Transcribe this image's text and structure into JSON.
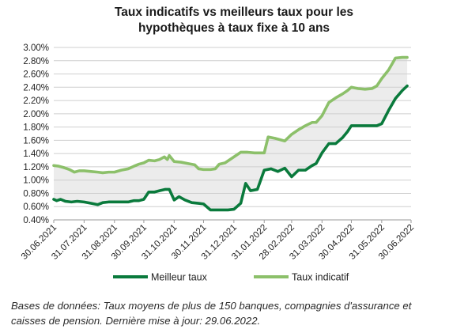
{
  "title_lines": [
    "Taux indicatifs vs meilleurs taux pour les",
    "hypothèques à taux fixe à 10 ans"
  ],
  "source_note_lines": [
    "Bases de données: Taux moyens de plus de 150 banques, compagnies d'assurance et",
    "caisses de pension. Dernière mise à jour: 29.06.2022."
  ],
  "colors": {
    "meilleur_taux": "#0a7a3c",
    "taux_indicatif": "#8cc06a",
    "band_fill": "#ececec",
    "grid": "#cfcfcf"
  },
  "chart_data": {
    "type": "line",
    "title": "Taux indicatifs vs meilleurs taux pour les hypothèques à taux fixe à 10 ans",
    "xlabel": "",
    "ylabel": "",
    "x_tick_labels": [
      "30.06.2021",
      "31.07.2021",
      "31.08.2021",
      "30.09.2021",
      "31.10.2021",
      "30.11.2021",
      "31.12.2021",
      "31.01.2022",
      "28.02.2022",
      "31.03.2022",
      "30.04.2022",
      "31.05.2022",
      "30.06.2022"
    ],
    "y_tick_labels": [
      "0.40%",
      "0.60%",
      "0.80%",
      "1.00%",
      "1.20%",
      "1.40%",
      "1.60%",
      "1.80%",
      "2.00%",
      "2.20%",
      "2.40%",
      "2.60%",
      "2.80%",
      "3.00%"
    ],
    "ylim": [
      0.4,
      3.0
    ],
    "y_unit": "%",
    "grid": "horizontal",
    "legend_position": "bottom",
    "series": [
      {
        "name": "Meilleur taux",
        "key": "meilleur_taux",
        "points": [
          [
            "30.06.2021",
            0.71
          ],
          [
            "03.07.2021",
            0.69
          ],
          [
            "07.07.2021",
            0.71
          ],
          [
            "12.07.2021",
            0.68
          ],
          [
            "18.07.2021",
            0.67
          ],
          [
            "24.07.2021",
            0.68
          ],
          [
            "31.07.2021",
            0.67
          ],
          [
            "07.08.2021",
            0.65
          ],
          [
            "14.08.2021",
            0.63
          ],
          [
            "19.08.2021",
            0.66
          ],
          [
            "25.08.2021",
            0.67
          ],
          [
            "31.08.2021",
            0.67
          ],
          [
            "07.09.2021",
            0.67
          ],
          [
            "14.09.2021",
            0.67
          ],
          [
            "20.09.2021",
            0.69
          ],
          [
            "25.09.2021",
            0.69
          ],
          [
            "30.09.2021",
            0.71
          ],
          [
            "05.10.2021",
            0.82
          ],
          [
            "11.10.2021",
            0.82
          ],
          [
            "16.10.2021",
            0.84
          ],
          [
            "22.10.2021",
            0.86
          ],
          [
            "26.10.2021",
            0.86
          ],
          [
            "31.10.2021",
            0.7
          ],
          [
            "05.11.2021",
            0.75
          ],
          [
            "11.11.2021",
            0.7
          ],
          [
            "18.11.2021",
            0.66
          ],
          [
            "25.11.2021",
            0.65
          ],
          [
            "30.11.2021",
            0.64
          ],
          [
            "07.12.2021",
            0.55
          ],
          [
            "14.12.2021",
            0.55
          ],
          [
            "20.12.2021",
            0.55
          ],
          [
            "25.12.2021",
            0.55
          ],
          [
            "31.12.2021",
            0.56
          ],
          [
            "07.01.2022",
            0.65
          ],
          [
            "12.01.2022",
            0.95
          ],
          [
            "17.01.2022",
            0.84
          ],
          [
            "24.01.2022",
            0.86
          ],
          [
            "31.01.2022",
            1.15
          ],
          [
            "07.02.2022",
            1.17
          ],
          [
            "14.02.2022",
            1.13
          ],
          [
            "21.02.2022",
            1.18
          ],
          [
            "28.02.2022",
            1.05
          ],
          [
            "07.03.2022",
            1.15
          ],
          [
            "14.03.2022",
            1.15
          ],
          [
            "21.03.2022",
            1.22
          ],
          [
            "25.03.2022",
            1.25
          ],
          [
            "31.03.2022",
            1.41
          ],
          [
            "07.04.2022",
            1.55
          ],
          [
            "14.04.2022",
            1.55
          ],
          [
            "21.04.2022",
            1.64
          ],
          [
            "26.04.2022",
            1.73
          ],
          [
            "30.04.2022",
            1.82
          ],
          [
            "07.05.2022",
            1.82
          ],
          [
            "14.05.2022",
            1.82
          ],
          [
            "21.05.2022",
            1.82
          ],
          [
            "26.05.2022",
            1.82
          ],
          [
            "31.05.2022",
            1.85
          ],
          [
            "07.06.2022",
            2.05
          ],
          [
            "14.06.2022",
            2.23
          ],
          [
            "21.06.2022",
            2.35
          ],
          [
            "26.06.2022",
            2.42
          ]
        ]
      },
      {
        "name": "Taux indicatif",
        "key": "taux_indicatif",
        "points": [
          [
            "30.06.2021",
            1.22
          ],
          [
            "05.07.2021",
            1.21
          ],
          [
            "10.07.2021",
            1.19
          ],
          [
            "16.07.2021",
            1.16
          ],
          [
            "21.07.2021",
            1.12
          ],
          [
            "26.07.2021",
            1.14
          ],
          [
            "31.07.2021",
            1.14
          ],
          [
            "07.08.2021",
            1.13
          ],
          [
            "14.08.2021",
            1.12
          ],
          [
            "19.08.2021",
            1.11
          ],
          [
            "25.08.2021",
            1.12
          ],
          [
            "31.08.2021",
            1.12
          ],
          [
            "07.09.2021",
            1.15
          ],
          [
            "14.09.2021",
            1.17
          ],
          [
            "20.09.2021",
            1.21
          ],
          [
            "25.09.2021",
            1.24
          ],
          [
            "30.09.2021",
            1.26
          ],
          [
            "05.10.2021",
            1.3
          ],
          [
            "11.10.2021",
            1.29
          ],
          [
            "16.10.2021",
            1.31
          ],
          [
            "21.10.2021",
            1.35
          ],
          [
            "24.10.2021",
            1.31
          ],
          [
            "26.10.2021",
            1.37
          ],
          [
            "31.10.2021",
            1.28
          ],
          [
            "07.11.2021",
            1.27
          ],
          [
            "14.11.2021",
            1.25
          ],
          [
            "21.11.2021",
            1.23
          ],
          [
            "25.11.2021",
            1.17
          ],
          [
            "30.11.2021",
            1.16
          ],
          [
            "07.12.2021",
            1.16
          ],
          [
            "12.12.2021",
            1.17
          ],
          [
            "16.12.2021",
            1.24
          ],
          [
            "22.12.2021",
            1.26
          ],
          [
            "31.12.2021",
            1.35
          ],
          [
            "07.01.2022",
            1.42
          ],
          [
            "14.01.2022",
            1.42
          ],
          [
            "21.01.2022",
            1.41
          ],
          [
            "28.01.2022",
            1.41
          ],
          [
            "31.01.2022",
            1.41
          ],
          [
            "04.02.2022",
            1.65
          ],
          [
            "11.02.2022",
            1.63
          ],
          [
            "21.02.2022",
            1.59
          ],
          [
            "28.02.2022",
            1.69
          ],
          [
            "07.03.2022",
            1.76
          ],
          [
            "14.03.2022",
            1.82
          ],
          [
            "21.03.2022",
            1.87
          ],
          [
            "25.03.2022",
            1.87
          ],
          [
            "31.03.2022",
            1.97
          ],
          [
            "07.04.2022",
            2.17
          ],
          [
            "14.04.2022",
            2.24
          ],
          [
            "21.04.2022",
            2.3
          ],
          [
            "26.04.2022",
            2.35
          ],
          [
            "30.04.2022",
            2.4
          ],
          [
            "07.05.2022",
            2.38
          ],
          [
            "14.05.2022",
            2.37
          ],
          [
            "21.05.2022",
            2.38
          ],
          [
            "26.05.2022",
            2.42
          ],
          [
            "31.05.2022",
            2.53
          ],
          [
            "07.06.2022",
            2.66
          ],
          [
            "14.06.2022",
            2.84
          ],
          [
            "21.06.2022",
            2.85
          ],
          [
            "26.06.2022",
            2.85
          ]
        ]
      }
    ]
  }
}
